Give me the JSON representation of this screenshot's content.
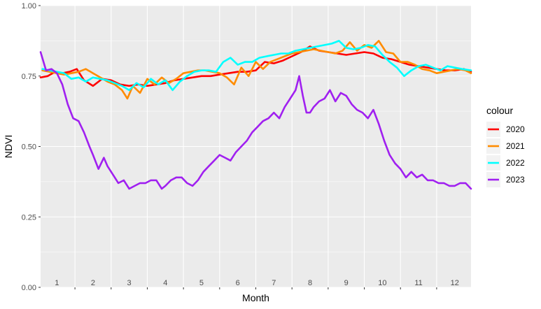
{
  "chart_data": {
    "type": "line",
    "xlabel": "Month",
    "ylabel": "NDVI",
    "ylim": [
      0,
      1
    ],
    "xlim": [
      0.55,
      12.45
    ],
    "y_ticks": [
      "0.00",
      "0.25",
      "0.50",
      "0.75",
      "1.00"
    ],
    "y_tick_values": [
      0,
      0.25,
      0.5,
      0.75,
      1
    ],
    "x_tick_labels": [
      "1",
      "2",
      "3",
      "4",
      "5",
      "6",
      "7",
      "8",
      "9",
      "10",
      "11",
      "12"
    ],
    "x_tick_values": [
      1,
      2,
      3,
      4,
      5,
      6,
      7,
      8,
      9,
      10,
      11,
      12
    ],
    "grid": true,
    "legend": {
      "title": "colour",
      "placement": "right"
    },
    "series": [
      {
        "name": "2020",
        "color": "#ff0000",
        "x": [
          0.55,
          0.75,
          0.95,
          1.15,
          1.35,
          1.55,
          1.75,
          2.0,
          2.25,
          2.5,
          2.75,
          3.0,
          3.25,
          3.5,
          3.75,
          4.0,
          4.25,
          4.5,
          4.75,
          5.0,
          5.25,
          5.5,
          5.75,
          6.0,
          6.25,
          6.5,
          6.75,
          7.0,
          7.25,
          7.5,
          7.75,
          8.0,
          8.25,
          8.5,
          8.75,
          9.0,
          9.25,
          9.5,
          9.75,
          10.0,
          10.25,
          10.5,
          10.75,
          11.0,
          11.25,
          11.5,
          11.75,
          12.0,
          12.25,
          12.45
        ],
        "y": [
          0.745,
          0.75,
          0.765,
          0.76,
          0.765,
          0.775,
          0.735,
          0.715,
          0.74,
          0.735,
          0.72,
          0.715,
          0.72,
          0.715,
          0.72,
          0.725,
          0.735,
          0.74,
          0.745,
          0.75,
          0.75,
          0.755,
          0.76,
          0.765,
          0.765,
          0.77,
          0.8,
          0.795,
          0.805,
          0.82,
          0.835,
          0.855,
          0.84,
          0.835,
          0.83,
          0.825,
          0.83,
          0.835,
          0.83,
          0.815,
          0.81,
          0.8,
          0.79,
          0.785,
          0.78,
          0.775,
          0.77,
          0.77,
          0.775,
          0.765
        ]
      },
      {
        "name": "2021",
        "color": "#ff8c00",
        "x": [
          0.6,
          0.8,
          1.0,
          1.2,
          1.4,
          1.6,
          1.8,
          2.0,
          2.2,
          2.4,
          2.6,
          2.8,
          2.95,
          3.1,
          3.3,
          3.5,
          3.7,
          3.9,
          4.1,
          4.3,
          4.5,
          4.7,
          4.9,
          5.1,
          5.3,
          5.5,
          5.7,
          5.9,
          6.1,
          6.3,
          6.5,
          6.7,
          6.9,
          7.1,
          7.3,
          7.5,
          7.7,
          7.9,
          8.1,
          8.3,
          8.5,
          8.7,
          8.9,
          9.1,
          9.3,
          9.5,
          9.7,
          9.9,
          10.1,
          10.3,
          10.5,
          10.7,
          10.9,
          11.1,
          11.3,
          11.5,
          11.7,
          11.9,
          12.1,
          12.3,
          12.45
        ],
        "y": [
          0.77,
          0.765,
          0.76,
          0.755,
          0.76,
          0.765,
          0.775,
          0.76,
          0.745,
          0.73,
          0.72,
          0.7,
          0.67,
          0.715,
          0.69,
          0.74,
          0.72,
          0.745,
          0.725,
          0.74,
          0.76,
          0.765,
          0.77,
          0.77,
          0.765,
          0.76,
          0.745,
          0.72,
          0.78,
          0.75,
          0.8,
          0.775,
          0.8,
          0.81,
          0.82,
          0.83,
          0.835,
          0.84,
          0.845,
          0.84,
          0.835,
          0.83,
          0.84,
          0.87,
          0.84,
          0.86,
          0.85,
          0.875,
          0.835,
          0.83,
          0.8,
          0.8,
          0.79,
          0.775,
          0.77,
          0.76,
          0.765,
          0.77,
          0.775,
          0.77,
          0.76
        ]
      },
      {
        "name": "2022",
        "color": "#00ffff",
        "x": [
          0.6,
          0.8,
          1.0,
          1.2,
          1.4,
          1.6,
          1.8,
          2.0,
          2.2,
          2.4,
          2.6,
          2.8,
          3.0,
          3.2,
          3.4,
          3.6,
          3.8,
          4.0,
          4.2,
          4.4,
          4.6,
          4.8,
          5.0,
          5.2,
          5.4,
          5.6,
          5.8,
          6.0,
          6.2,
          6.4,
          6.6,
          6.8,
          7.0,
          7.2,
          7.4,
          7.6,
          7.8,
          8.0,
          8.2,
          8.4,
          8.6,
          8.8,
          9.0,
          9.2,
          9.4,
          9.6,
          9.8,
          10.0,
          10.2,
          10.4,
          10.6,
          10.8,
          11.0,
          11.2,
          11.4,
          11.6,
          11.8,
          12.0,
          12.2,
          12.45
        ],
        "y": [
          0.775,
          0.77,
          0.765,
          0.76,
          0.74,
          0.745,
          0.73,
          0.745,
          0.74,
          0.735,
          0.725,
          0.715,
          0.7,
          0.725,
          0.71,
          0.74,
          0.72,
          0.735,
          0.7,
          0.73,
          0.75,
          0.765,
          0.77,
          0.77,
          0.765,
          0.8,
          0.815,
          0.79,
          0.8,
          0.8,
          0.815,
          0.82,
          0.825,
          0.83,
          0.83,
          0.84,
          0.845,
          0.85,
          0.855,
          0.86,
          0.865,
          0.875,
          0.85,
          0.845,
          0.85,
          0.86,
          0.855,
          0.825,
          0.8,
          0.78,
          0.75,
          0.77,
          0.785,
          0.79,
          0.78,
          0.77,
          0.785,
          0.78,
          0.775,
          0.77
        ]
      },
      {
        "name": "2023",
        "color": "#a020f0",
        "x": [
          0.55,
          0.7,
          0.85,
          1.0,
          1.15,
          1.3,
          1.45,
          1.6,
          1.75,
          1.9,
          2.0,
          2.15,
          2.3,
          2.4,
          2.55,
          2.7,
          2.85,
          3.0,
          3.15,
          3.3,
          3.45,
          3.6,
          3.75,
          3.9,
          4.0,
          4.15,
          4.3,
          4.45,
          4.6,
          4.75,
          4.9,
          5.05,
          5.2,
          5.35,
          5.5,
          5.65,
          5.8,
          5.95,
          6.1,
          6.25,
          6.4,
          6.55,
          6.7,
          6.85,
          7.0,
          7.15,
          7.3,
          7.45,
          7.6,
          7.7,
          7.8,
          7.9,
          8.0,
          8.1,
          8.25,
          8.4,
          8.55,
          8.7,
          8.85,
          9.0,
          9.15,
          9.3,
          9.45,
          9.6,
          9.75,
          9.9,
          10.05,
          10.2,
          10.35,
          10.5,
          10.65,
          10.8,
          10.95,
          11.1,
          11.25,
          11.4,
          11.55,
          11.7,
          11.85,
          12.0,
          12.15,
          12.3,
          12.45
        ],
        "y": [
          0.835,
          0.77,
          0.775,
          0.76,
          0.72,
          0.65,
          0.6,
          0.59,
          0.55,
          0.5,
          0.47,
          0.42,
          0.46,
          0.43,
          0.4,
          0.37,
          0.38,
          0.35,
          0.36,
          0.37,
          0.37,
          0.38,
          0.38,
          0.35,
          0.36,
          0.38,
          0.39,
          0.39,
          0.37,
          0.36,
          0.38,
          0.41,
          0.43,
          0.45,
          0.47,
          0.46,
          0.45,
          0.48,
          0.5,
          0.52,
          0.55,
          0.57,
          0.59,
          0.6,
          0.62,
          0.6,
          0.64,
          0.67,
          0.7,
          0.75,
          0.68,
          0.62,
          0.62,
          0.64,
          0.66,
          0.67,
          0.7,
          0.66,
          0.69,
          0.68,
          0.65,
          0.63,
          0.62,
          0.6,
          0.63,
          0.58,
          0.52,
          0.47,
          0.44,
          0.42,
          0.39,
          0.41,
          0.39,
          0.4,
          0.38,
          0.38,
          0.37,
          0.37,
          0.36,
          0.36,
          0.37,
          0.37,
          0.35
        ]
      }
    ]
  }
}
